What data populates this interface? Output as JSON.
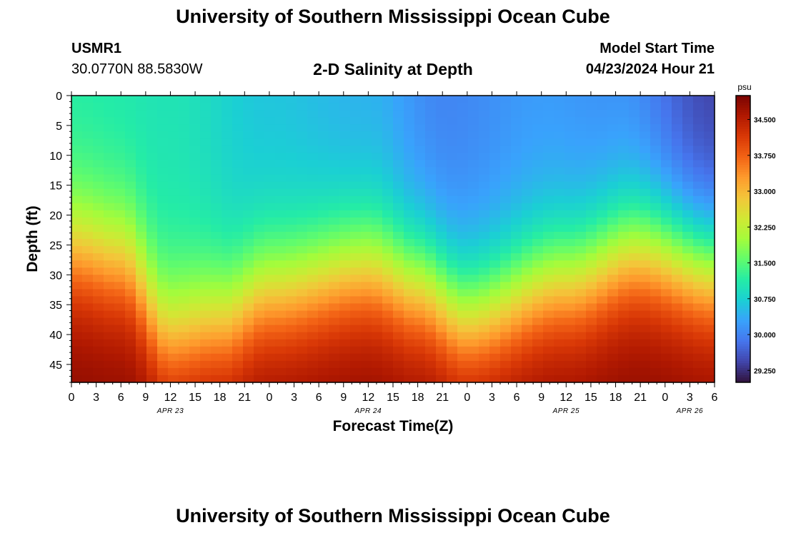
{
  "header": {
    "title": "University of Southern Mississippi Ocean Cube",
    "station_id": "USMR1",
    "station_coords": "30.0770N  88.5830W",
    "subtitle": "2-D Salinity at Depth",
    "start_label": "Model Start Time",
    "start_value": "04/23/2024 Hour 21"
  },
  "footer": {
    "title": "University of Southern Mississippi Ocean Cube"
  },
  "chart_data": {
    "type": "heatmap",
    "title": "2-D Salinity at Depth",
    "xlabel": "Forecast Time(Z)",
    "ylabel": "Depth (ft)",
    "x_ticks": [
      "0",
      "3",
      "6",
      "9",
      "12",
      "15",
      "18",
      "21",
      "0",
      "3",
      "6",
      "9",
      "12",
      "15",
      "18",
      "21",
      "0",
      "3",
      "6",
      "9",
      "12",
      "15",
      "18",
      "21",
      "0",
      "3",
      "6"
    ],
    "x_range_hours": [
      0,
      78
    ],
    "date_labels": [
      {
        "label": "APR 23",
        "hour": 12
      },
      {
        "label": "APR 24",
        "hour": 36
      },
      {
        "label": "APR 25",
        "hour": 60
      },
      {
        "label": "APR 26",
        "hour": 75
      }
    ],
    "y_ticks": [
      0,
      5,
      10,
      15,
      20,
      25,
      30,
      35,
      40,
      45
    ],
    "y_range_ft": [
      0,
      48
    ],
    "colorbar": {
      "unit": "psu",
      "range": [
        29.0,
        35.0
      ],
      "ticks": [
        29.25,
        30.0,
        30.75,
        31.5,
        32.25,
        33.0,
        33.75,
        34.5
      ],
      "tick_labels": [
        "29.250",
        "30.000",
        "30.750",
        "31.500",
        "32.250",
        "33.000",
        "33.750",
        "34.500"
      ],
      "colors": [
        "#30123b",
        "#4145ab",
        "#4675ed",
        "#39a2fc",
        "#1bcfd4",
        "#24eca6",
        "#61fc6c",
        "#a4fc3b",
        "#d1e834",
        "#f3c63a",
        "#fe9b2d",
        "#f36315",
        "#d93806",
        "#b11901",
        "#7a0402"
      ]
    },
    "surface_salinity_at_hours": [
      {
        "hour": 0,
        "psu": 31.1
      },
      {
        "hour": 12,
        "psu": 31.0
      },
      {
        "hour": 24,
        "psu": 30.6
      },
      {
        "hour": 36,
        "psu": 30.4
      },
      {
        "hour": 45,
        "psu": 30.0
      },
      {
        "hour": 57,
        "psu": 30.2
      },
      {
        "hour": 66,
        "psu": 30.1
      },
      {
        "hour": 78,
        "psu": 29.4
      }
    ],
    "bottom_salinity_psu": 34.9,
    "halocline_depth_ft_at_hours": [
      {
        "hour": 0,
        "depth": 26
      },
      {
        "hour": 6,
        "depth": 28
      },
      {
        "hour": 12,
        "depth": 40
      },
      {
        "hour": 18,
        "depth": 38
      },
      {
        "hour": 24,
        "depth": 33
      },
      {
        "hour": 36,
        "depth": 29
      },
      {
        "hour": 42,
        "depth": 32
      },
      {
        "hour": 48,
        "depth": 37
      },
      {
        "hour": 60,
        "depth": 31
      },
      {
        "hour": 69,
        "depth": 26
      },
      {
        "hour": 78,
        "depth": 29
      }
    ]
  }
}
